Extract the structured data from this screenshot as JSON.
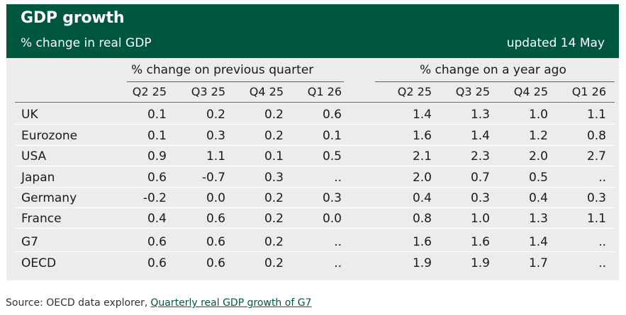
{
  "header": {
    "title": "GDP growth",
    "subtitle": "% change in real GDP",
    "updated": "updated 14 May"
  },
  "groups": {
    "previous_quarter": "% change on previous quarter",
    "year_ago": "% change on a year ago"
  },
  "columns": [
    "Q2 25",
    "Q3 25",
    "Q4 25",
    "Q1 26"
  ],
  "rows": [
    {
      "label": "UK",
      "qoq": [
        "0.1",
        "0.2",
        "0.2",
        "0.6"
      ],
      "yoy": [
        "1.4",
        "1.3",
        "1.0",
        "1.1"
      ]
    },
    {
      "label": "Eurozone",
      "qoq": [
        "0.1",
        "0.3",
        "0.2",
        "0.1"
      ],
      "yoy": [
        "1.6",
        "1.4",
        "1.2",
        "0.8"
      ]
    },
    {
      "label": "USA",
      "qoq": [
        "0.9",
        "1.1",
        "0.1",
        "0.5"
      ],
      "yoy": [
        "2.1",
        "2.3",
        "2.0",
        "2.7"
      ]
    },
    {
      "label": "Japan",
      "qoq": [
        "0.6",
        "-0.7",
        "0.3",
        ".."
      ],
      "yoy": [
        "2.0",
        "0.7",
        "0.5",
        ".."
      ]
    },
    {
      "label": "Germany",
      "qoq": [
        "-0.2",
        "0.0",
        "0.2",
        "0.3"
      ],
      "yoy": [
        "0.4",
        "0.3",
        "0.4",
        "0.3"
      ]
    },
    {
      "label": "France",
      "qoq": [
        "0.4",
        "0.6",
        "0.2",
        "0.0"
      ],
      "yoy": [
        "0.8",
        "1.0",
        "1.3",
        "1.1"
      ]
    },
    {
      "label": "G7",
      "qoq": [
        "0.6",
        "0.6",
        "0.2",
        ".."
      ],
      "yoy": [
        "1.6",
        "1.6",
        "1.4",
        ".."
      ]
    },
    {
      "label": "OECD",
      "qoq": [
        "0.6",
        "0.6",
        "0.2",
        ".."
      ],
      "yoy": [
        "1.9",
        "1.9",
        "1.7",
        ".."
      ]
    }
  ],
  "source": {
    "prefix": "Source: OECD data explorer,",
    "link_text": "Quarterly real GDP growth of G7"
  },
  "colors": {
    "header_bg": "#00573f",
    "table_bg": "#ececec",
    "link": "#00573f"
  }
}
